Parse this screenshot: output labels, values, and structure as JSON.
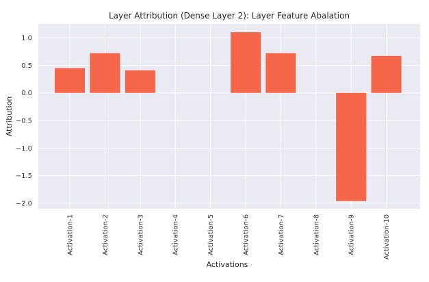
{
  "chart_data": {
    "type": "bar",
    "title": "Layer Attribution (Dense Layer 2): Layer Feature Abalation",
    "xlabel": "Activations",
    "ylabel": "Attribution",
    "categories": [
      "Activation-1",
      "Activation-2",
      "Activation-3",
      "Activation-4",
      "Activation-5",
      "Activation-6",
      "Activation-7",
      "Activation-8",
      "Activation-9",
      "Activation-10"
    ],
    "values": [
      0.45,
      0.72,
      0.41,
      0.0,
      0.0,
      1.1,
      0.72,
      0.0,
      -1.96,
      0.67
    ],
    "ylim": [
      -2.1,
      1.25
    ],
    "yticks": [
      1.0,
      0.5,
      0.0,
      -0.5,
      -1.0,
      -1.5,
      -2.0
    ],
    "ytick_labels": [
      "1.0",
      "0.5",
      "0.0",
      "−0.5",
      "−1.0",
      "−1.5",
      "−2.0"
    ],
    "bar_color": "#f4654a",
    "background_color": "#eaeaf2",
    "grid": true
  }
}
